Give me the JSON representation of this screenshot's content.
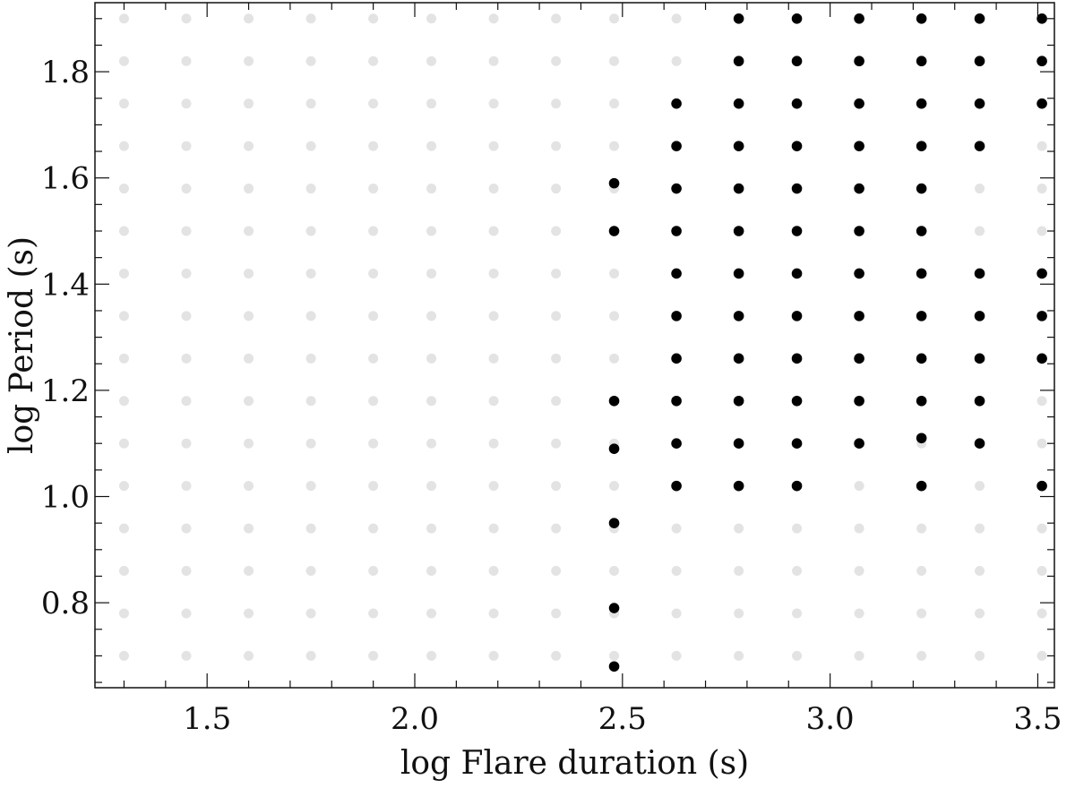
{
  "chart_data": {
    "type": "scatter",
    "title": "",
    "xlabel": "log Flare duration (s)",
    "ylabel": "log Period (s)",
    "xlim": [
      1.23,
      3.54
    ],
    "ylim": [
      0.64,
      1.93
    ],
    "x_ticks": [
      {
        "value": 1.5,
        "label": "1.5"
      },
      {
        "value": 2.0,
        "label": "2.0"
      },
      {
        "value": 2.5,
        "label": "2.5"
      },
      {
        "value": 3.0,
        "label": "3.0"
      },
      {
        "value": 3.5,
        "label": "3.5"
      }
    ],
    "y_ticks": [
      {
        "value": 0.8,
        "label": "0.8"
      },
      {
        "value": 1.0,
        "label": "1.0"
      },
      {
        "value": 1.2,
        "label": "1.2"
      },
      {
        "value": 1.4,
        "label": "1.4"
      },
      {
        "value": 1.6,
        "label": "1.6"
      },
      {
        "value": 1.8,
        "label": "1.8"
      }
    ],
    "grid": false,
    "series": [
      {
        "color": "#e3e3e3",
        "x_values": [
          1.3,
          1.45,
          1.6,
          1.75,
          1.9,
          2.04,
          2.19,
          2.34,
          2.48,
          2.63,
          2.78,
          2.92,
          3.07,
          3.22,
          3.36,
          3.51
        ],
        "y_values": [
          0.7,
          0.78,
          0.86,
          0.94,
          1.02,
          1.1,
          1.18,
          1.26,
          1.34,
          1.42,
          1.5,
          1.58,
          1.66,
          1.74,
          1.82,
          1.9
        ]
      },
      {
        "color": "#000000",
        "points": [
          [
            2.48,
            0.68
          ],
          [
            2.48,
            0.79
          ],
          [
            2.48,
            0.95
          ],
          [
            2.48,
            1.09
          ],
          [
            2.48,
            1.18
          ],
          [
            2.48,
            1.5
          ],
          [
            2.48,
            1.59
          ],
          [
            2.63,
            1.02
          ],
          [
            2.63,
            1.1
          ],
          [
            2.63,
            1.18
          ],
          [
            2.63,
            1.26
          ],
          [
            2.63,
            1.34
          ],
          [
            2.63,
            1.42
          ],
          [
            2.63,
            1.5
          ],
          [
            2.63,
            1.58
          ],
          [
            2.63,
            1.66
          ],
          [
            2.63,
            1.74
          ],
          [
            2.78,
            1.02
          ],
          [
            2.78,
            1.1
          ],
          [
            2.78,
            1.18
          ],
          [
            2.78,
            1.26
          ],
          [
            2.78,
            1.34
          ],
          [
            2.78,
            1.42
          ],
          [
            2.78,
            1.5
          ],
          [
            2.78,
            1.58
          ],
          [
            2.78,
            1.66
          ],
          [
            2.78,
            1.74
          ],
          [
            2.78,
            1.82
          ],
          [
            2.78,
            1.9
          ],
          [
            2.92,
            1.02
          ],
          [
            2.92,
            1.1
          ],
          [
            2.92,
            1.18
          ],
          [
            2.92,
            1.26
          ],
          [
            2.92,
            1.34
          ],
          [
            2.92,
            1.42
          ],
          [
            2.92,
            1.5
          ],
          [
            2.92,
            1.58
          ],
          [
            2.92,
            1.66
          ],
          [
            2.92,
            1.74
          ],
          [
            2.92,
            1.82
          ],
          [
            2.92,
            1.9
          ],
          [
            3.07,
            1.1
          ],
          [
            3.07,
            1.18
          ],
          [
            3.07,
            1.26
          ],
          [
            3.07,
            1.34
          ],
          [
            3.07,
            1.42
          ],
          [
            3.07,
            1.5
          ],
          [
            3.07,
            1.58
          ],
          [
            3.07,
            1.66
          ],
          [
            3.07,
            1.74
          ],
          [
            3.07,
            1.82
          ],
          [
            3.07,
            1.9
          ],
          [
            3.22,
            1.02
          ],
          [
            3.22,
            1.11
          ],
          [
            3.22,
            1.18
          ],
          [
            3.22,
            1.26
          ],
          [
            3.22,
            1.34
          ],
          [
            3.22,
            1.42
          ],
          [
            3.22,
            1.5
          ],
          [
            3.22,
            1.58
          ],
          [
            3.22,
            1.66
          ],
          [
            3.22,
            1.74
          ],
          [
            3.22,
            1.82
          ],
          [
            3.22,
            1.9
          ],
          [
            3.36,
            1.1
          ],
          [
            3.36,
            1.18
          ],
          [
            3.36,
            1.26
          ],
          [
            3.36,
            1.34
          ],
          [
            3.36,
            1.42
          ],
          [
            3.36,
            1.66
          ],
          [
            3.36,
            1.74
          ],
          [
            3.36,
            1.82
          ],
          [
            3.36,
            1.9
          ],
          [
            3.51,
            1.02
          ],
          [
            3.51,
            1.26
          ],
          [
            3.51,
            1.34
          ],
          [
            3.51,
            1.42
          ],
          [
            3.51,
            1.74
          ],
          [
            3.51,
            1.82
          ],
          [
            3.51,
            1.9
          ]
        ]
      }
    ]
  }
}
